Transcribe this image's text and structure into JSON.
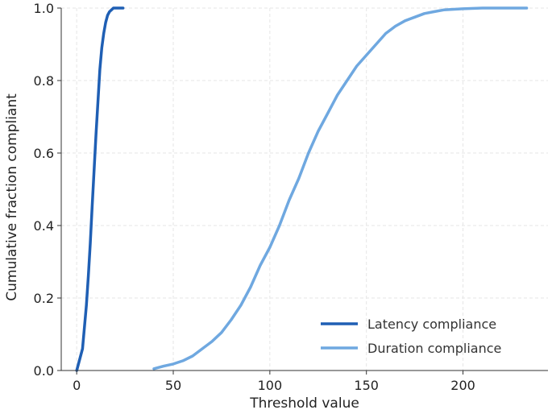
{
  "chart_data": {
    "type": "line",
    "title": "",
    "xlabel": "Threshold value",
    "ylabel": "Cumulative fraction compliant",
    "xlim": [
      -8,
      244
    ],
    "ylim": [
      0,
      1.0
    ],
    "xticks": [
      0,
      50,
      100,
      150,
      200
    ],
    "yticks": [
      0.0,
      0.2,
      0.4,
      0.6,
      0.8,
      1.0
    ],
    "xtick_labels": [
      "0",
      "50",
      "100",
      "150",
      "200"
    ],
    "ytick_labels": [
      "0.0",
      "0.2",
      "0.4",
      "0.6",
      "0.8",
      "1.0"
    ],
    "grid": true,
    "legend_position": "lower-right",
    "series": [
      {
        "name": "Latency compliance",
        "color": "#1f5fb4",
        "x": [
          0,
          1,
          2,
          3,
          4,
          5,
          6,
          7,
          8,
          9,
          10,
          11,
          12,
          13,
          14,
          15,
          16,
          17,
          18,
          19,
          20,
          22,
          24
        ],
        "y": [
          0.0,
          0.02,
          0.04,
          0.06,
          0.12,
          0.18,
          0.26,
          0.35,
          0.45,
          0.55,
          0.65,
          0.74,
          0.83,
          0.89,
          0.93,
          0.96,
          0.98,
          0.99,
          0.995,
          1.0,
          1.0,
          1.0,
          1.0
        ]
      },
      {
        "name": "Duration compliance",
        "color": "#6fa8e0",
        "x": [
          40,
          45,
          50,
          55,
          60,
          65,
          70,
          75,
          80,
          85,
          90,
          95,
          100,
          105,
          110,
          115,
          120,
          125,
          130,
          135,
          140,
          145,
          150,
          155,
          160,
          165,
          170,
          175,
          180,
          185,
          190,
          200,
          210,
          220,
          233
        ],
        "y": [
          0.005,
          0.012,
          0.018,
          0.027,
          0.04,
          0.06,
          0.08,
          0.105,
          0.14,
          0.18,
          0.23,
          0.29,
          0.34,
          0.4,
          0.47,
          0.53,
          0.6,
          0.66,
          0.71,
          0.76,
          0.8,
          0.84,
          0.87,
          0.9,
          0.93,
          0.95,
          0.965,
          0.975,
          0.985,
          0.99,
          0.995,
          0.998,
          1.0,
          1.0,
          1.0
        ]
      }
    ]
  }
}
